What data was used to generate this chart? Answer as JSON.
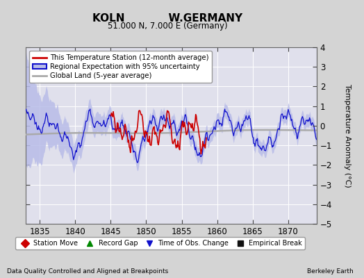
{
  "title1": "KOLN            W.GERMANY",
  "title2": "51.000 N, 7.000 E (Germany)",
  "ylabel": "Temperature Anomaly (°C)",
  "xlabel_note": "Data Quality Controlled and Aligned at Breakpoints",
  "credit": "Berkeley Earth",
  "xmin": 1833,
  "xmax": 1874,
  "ymin": -5,
  "ymax": 4,
  "yticks": [
    -5,
    -4,
    -3,
    -2,
    -1,
    0,
    1,
    2,
    3,
    4
  ],
  "xticks": [
    1835,
    1840,
    1845,
    1850,
    1855,
    1860,
    1865,
    1870
  ],
  "bg_color": "#d4d4d4",
  "plot_bg_color": "#e0e0ec",
  "grid_color": "#ffffff",
  "regional_fill_color": "#b8bce8",
  "regional_line_color": "#1010cc",
  "station_color": "#cc0000",
  "global_color": "#aaaaaa",
  "legend_labels": [
    "This Temperature Station (12-month average)",
    "Regional Expectation with 95% uncertainty",
    "Global Land (5-year average)"
  ],
  "bottom_legend": [
    {
      "label": "Station Move",
      "color": "#cc0000",
      "marker": "D"
    },
    {
      "label": "Record Gap",
      "color": "#008800",
      "marker": "^"
    },
    {
      "label": "Time of Obs. Change",
      "color": "#1010cc",
      "marker": "v"
    },
    {
      "label": "Empirical Break",
      "color": "#111111",
      "marker": "s"
    }
  ]
}
